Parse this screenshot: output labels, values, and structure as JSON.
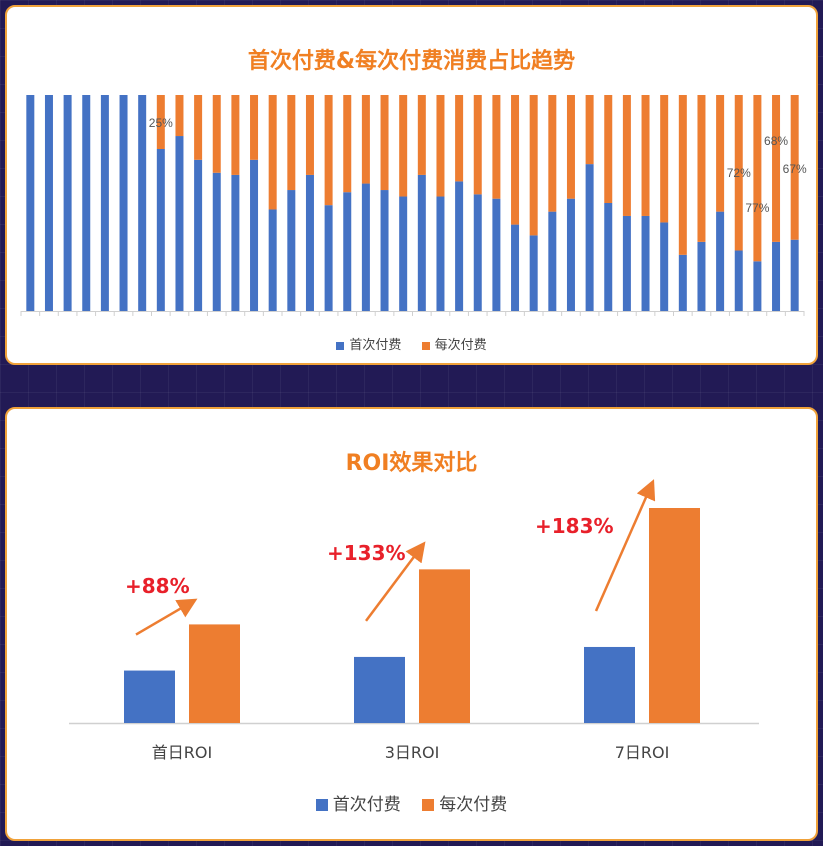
{
  "colors": {
    "first": "#4472c4",
    "repeat": "#ed7d31",
    "accent": "#f07f22",
    "growth": "#e8202a"
  },
  "chart_data": [
    {
      "type": "bar",
      "stacked": true,
      "percent": true,
      "title": "首次付费&每次付费消费占比趋势",
      "ylim": [
        0,
        100
      ],
      "legend_position": "bottom",
      "series": [
        {
          "name": "首次付费",
          "values": [
            100,
            100,
            100,
            100,
            100,
            100,
            100,
            75,
            81,
            70,
            64,
            63,
            70,
            47,
            56,
            63,
            49,
            55,
            59,
            56,
            53,
            63,
            53,
            60,
            54,
            52,
            40,
            35,
            46,
            52,
            68,
            50,
            44,
            44,
            41,
            26,
            32,
            46,
            28,
            23,
            32,
            33
          ]
        },
        {
          "name": "每次付费",
          "values": [
            0,
            0,
            0,
            0,
            0,
            0,
            0,
            25,
            19,
            30,
            36,
            37,
            30,
            53,
            44,
            37,
            51,
            45,
            41,
            44,
            47,
            37,
            47,
            40,
            46,
            48,
            60,
            65,
            54,
            48,
            32,
            50,
            56,
            56,
            59,
            74,
            68,
            54,
            72,
            77,
            68,
            67
          ]
        }
      ],
      "data_labels": [
        {
          "index": 7,
          "text": "25%"
        },
        {
          "index": 38,
          "text": "72%"
        },
        {
          "index": 39,
          "text": "77%"
        },
        {
          "index": 40,
          "text": "68%"
        },
        {
          "index": 41,
          "text": "67%"
        }
      ]
    },
    {
      "type": "bar",
      "title": "ROI效果对比",
      "categories": [
        "首日ROI",
        "3日ROI",
        "7日ROI"
      ],
      "legend_position": "bottom",
      "series": [
        {
          "name": "首次付费",
          "values": [
            1.0,
            1.26,
            1.45
          ]
        },
        {
          "name": "每次付费",
          "values": [
            1.88,
            2.93,
            4.1
          ]
        }
      ],
      "annotations": [
        "+88%",
        "+133%",
        "+183%"
      ]
    }
  ]
}
